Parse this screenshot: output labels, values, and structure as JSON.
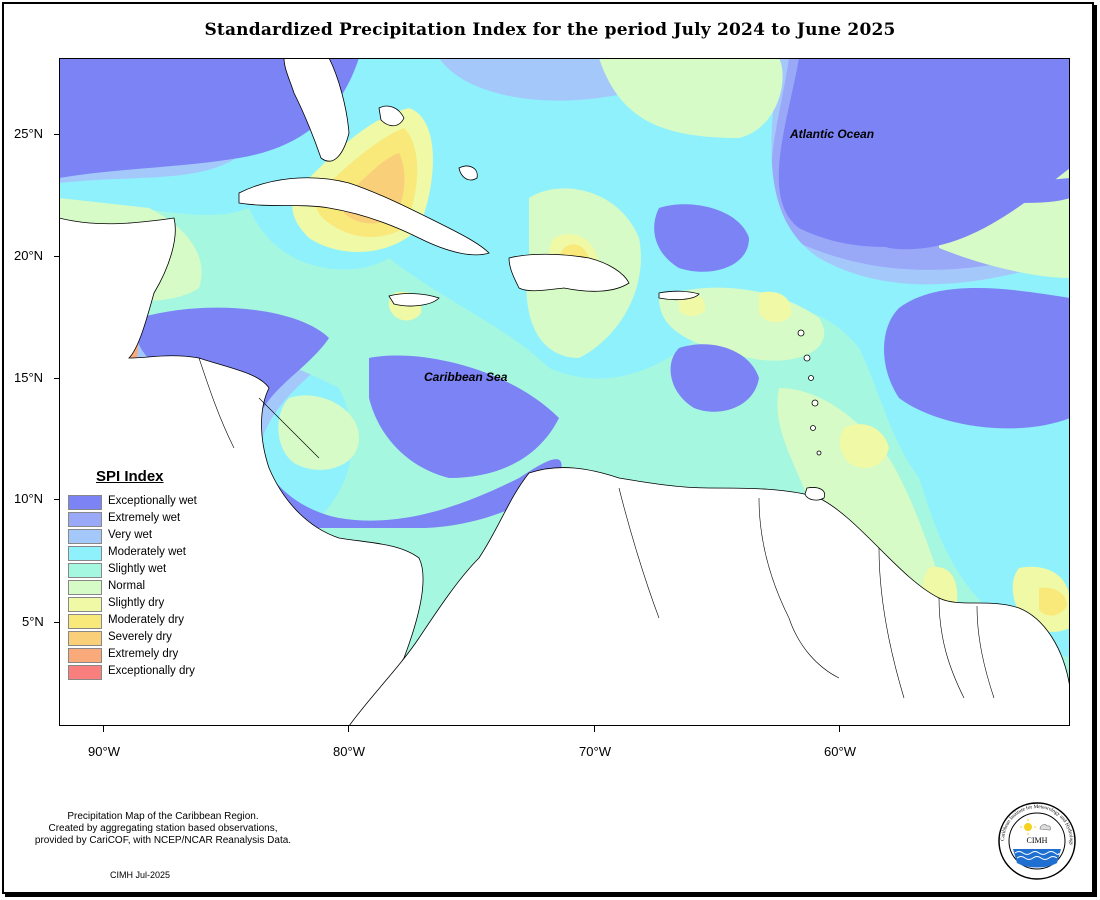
{
  "title": "Standardized Precipitation Index for the period July 2024 to June 2025",
  "map": {
    "lat_labels": [
      "25°N",
      "20°N",
      "15°N",
      "10°N",
      "5°N"
    ],
    "lon_labels": [
      "90°W",
      "80°W",
      "70°W",
      "60°W"
    ],
    "ocean_labels": {
      "atlantic": "Atlantic Ocean",
      "caribbean": "Caribbean Sea"
    }
  },
  "legend": {
    "title": "SPI Index",
    "items": [
      {
        "label": "Exceptionally wet",
        "color": "#7b83f5"
      },
      {
        "label": "Extremely wet",
        "color": "#9aa8f8"
      },
      {
        "label": "Very wet",
        "color": "#a5c8fb"
      },
      {
        "label": "Moderately wet",
        "color": "#8ff1fc"
      },
      {
        "label": "Slightly wet",
        "color": "#a6f7e0"
      },
      {
        "label": "Normal",
        "color": "#d6fbc6"
      },
      {
        "label": "Slightly dry",
        "color": "#eff9a6"
      },
      {
        "label": "Moderately dry",
        "color": "#f8e97a"
      },
      {
        "label": "Severely dry",
        "color": "#f9cf7a"
      },
      {
        "label": "Extremely dry",
        "color": "#f9a97a"
      },
      {
        "label": "Exceptionally dry",
        "color": "#f97e7e"
      }
    ]
  },
  "credit": {
    "line1": "Precipitation Map of the Caribbean Region.",
    "line2": "Created by aggregating station based observations,",
    "line3": "provided by CariCOF, with NCEP/NCAR Reanalysis Data."
  },
  "date_stamp": "CIMH Jul-2025",
  "logo": {
    "name": "CIMH",
    "ring_text": "Caribbean Institute for Meteorology and Hydrology"
  }
}
